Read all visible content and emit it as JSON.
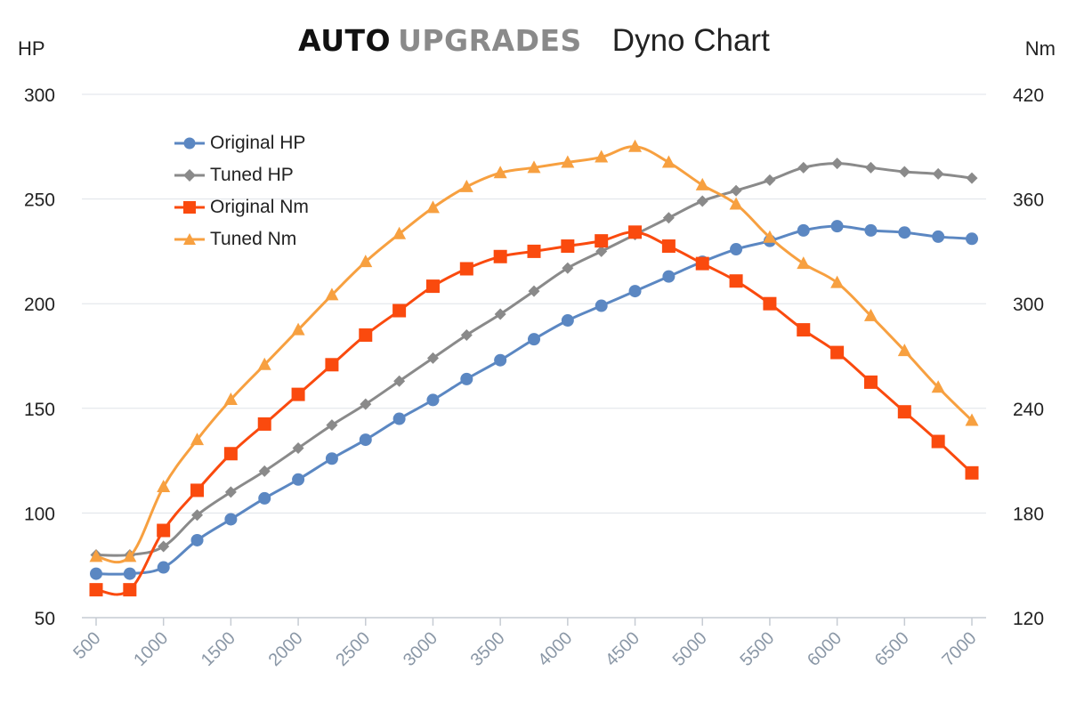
{
  "header": {
    "brand_part1": "AUTO",
    "brand_part2": "UPGRADES",
    "chart_title": "Dyno Chart"
  },
  "chart_data": {
    "type": "line",
    "title": "Dyno Chart",
    "xlabel": "",
    "x": [
      500,
      750,
      1000,
      1250,
      1500,
      1750,
      2000,
      2250,
      2500,
      2750,
      3000,
      3250,
      3500,
      3750,
      4000,
      4250,
      4500,
      4750,
      5000,
      5250,
      5500,
      5750,
      6000,
      6250,
      6500,
      6750,
      7000
    ],
    "x_ticks": [
      "500",
      "1000",
      "1500",
      "2000",
      "2500",
      "3000",
      "3500",
      "4000",
      "4500",
      "5000",
      "5500",
      "6000",
      "6500",
      "7000"
    ],
    "xlim": [
      500,
      7000
    ],
    "y_left": {
      "label": "HP",
      "ylim": [
        50,
        300
      ],
      "ticks": [
        "300",
        "250",
        "200",
        "150",
        "100",
        "50"
      ]
    },
    "y_right": {
      "label": "Nm",
      "ylim": [
        120,
        420
      ],
      "ticks": [
        "420",
        "360",
        "300",
        "240",
        "180",
        "120"
      ]
    },
    "grid": true,
    "legend_position": "top-left",
    "series": [
      {
        "name": "Original HP",
        "axis": "left",
        "marker": "circle",
        "color": "#5b87c2",
        "values": [
          71,
          71,
          74,
          87,
          97,
          107,
          116,
          126,
          135,
          145,
          154,
          164,
          173,
          183,
          192,
          199,
          206,
          213,
          220,
          226,
          230,
          235,
          237,
          235,
          234,
          232,
          231
        ]
      },
      {
        "name": "Tuned HP",
        "axis": "left",
        "marker": "diamond",
        "color": "#8a8a8a",
        "values": [
          80,
          80,
          84,
          99,
          110,
          120,
          131,
          142,
          152,
          163,
          174,
          185,
          195,
          206,
          217,
          225,
          233,
          241,
          249,
          254,
          259,
          265,
          267,
          265,
          263,
          262,
          260
        ]
      },
      {
        "name": "Original Nm",
        "axis": "right",
        "marker": "square",
        "color": "#fa4a0e",
        "values": [
          136,
          136,
          170,
          193,
          214,
          231,
          248,
          265,
          282,
          296,
          310,
          320,
          327,
          330,
          333,
          336,
          341,
          333,
          323,
          313,
          300,
          285,
          272,
          255,
          238,
          221,
          203
        ]
      },
      {
        "name": "Tuned Nm",
        "axis": "right",
        "marker": "triangle",
        "color": "#f7a040",
        "values": [
          155,
          155,
          195,
          222,
          245,
          265,
          285,
          305,
          324,
          340,
          355,
          367,
          375,
          378,
          381,
          384,
          390,
          381,
          368,
          357,
          338,
          323,
          312,
          293,
          273,
          252,
          233
        ]
      }
    ]
  }
}
